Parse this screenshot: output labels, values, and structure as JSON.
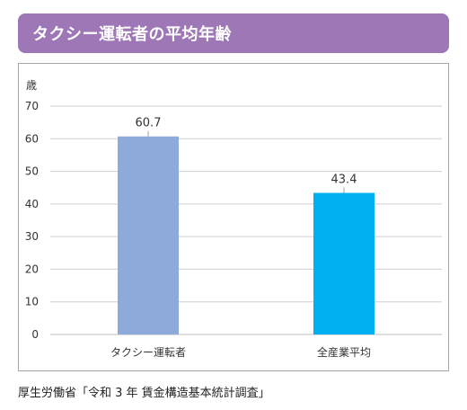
{
  "title": "タクシー運転者の平均年齢",
  "source": "厚生労働省「令和 3 年 賃金構造基本統計調査」",
  "colors": {
    "title_bar": "#9e78b6",
    "bar_taxi": "#8eaadb",
    "bar_all": "#00b0f0",
    "grid": "#d0d0d0"
  },
  "chart_data": {
    "type": "bar",
    "title": "",
    "xlabel": "",
    "ylabel": "歳",
    "ylim": [
      0,
      70
    ],
    "yticks": [
      0,
      10,
      20,
      30,
      40,
      50,
      60,
      70
    ],
    "grid": true,
    "categories": [
      "タクシー運転者",
      "全産業平均"
    ],
    "values": [
      60.7,
      43.4
    ],
    "data_labels": [
      "60.7",
      "43.4"
    ]
  }
}
